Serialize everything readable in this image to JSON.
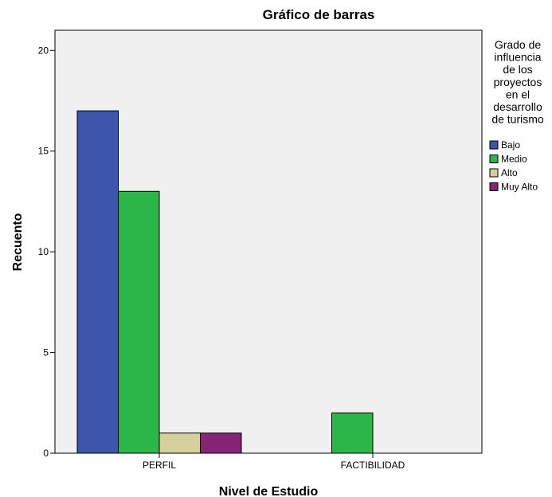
{
  "chart_data": {
    "type": "bar",
    "title": "Gráfico de barras",
    "xlabel": "Nivel de Estudio",
    "ylabel": "Recuento",
    "categories": [
      "PERFIL",
      "FACTIBILIDAD"
    ],
    "series": [
      {
        "name": "Bajo",
        "values": [
          17,
          0
        ],
        "color": "#3c55ad"
      },
      {
        "name": "Medio",
        "values": [
          13,
          2
        ],
        "color": "#2cb548"
      },
      {
        "name": "Alto",
        "values": [
          1,
          0
        ],
        "color": "#d6cf9e"
      },
      {
        "name": "Muy Alto",
        "values": [
          1,
          0
        ],
        "color": "#862475"
      }
    ],
    "ylim": [
      0,
      21
    ],
    "yticks": [
      0,
      5,
      10,
      15,
      20
    ],
    "grid": false,
    "legend_title": [
      "Grado de",
      "influencia",
      "de los",
      "proyectos",
      "en el",
      "desarrollo",
      "de turismo"
    ],
    "legend_position": "right",
    "plot_background": "#f0f0f0"
  }
}
